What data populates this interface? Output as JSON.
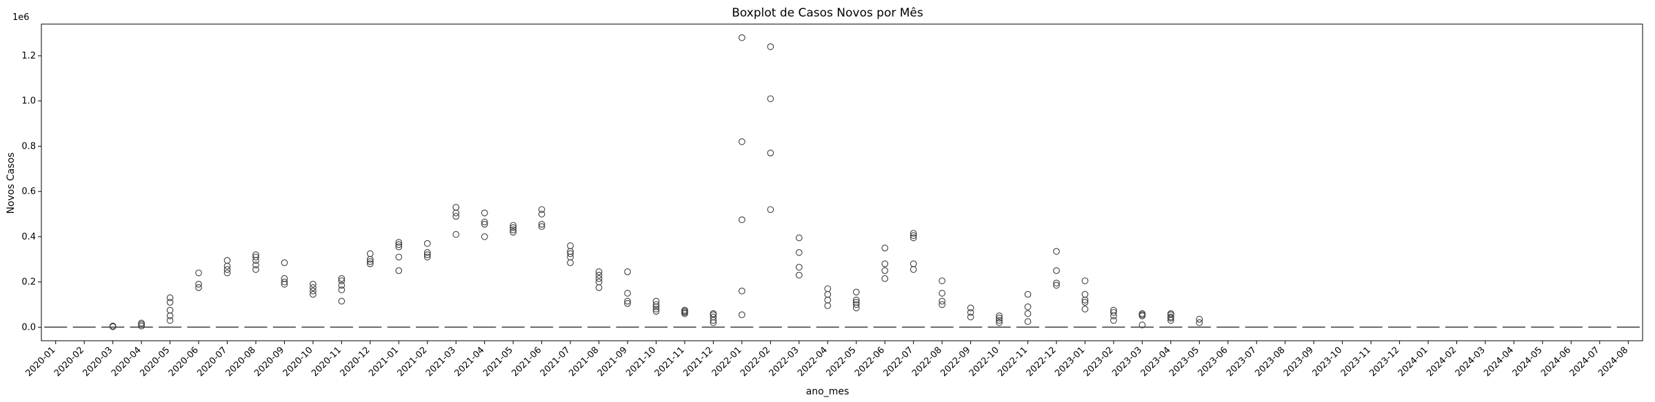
{
  "chart_data": {
    "type": "box",
    "title": "Boxplot de Casos Novos por Mês",
    "xlabel": "ano_mes",
    "ylabel": "Novos Casos",
    "y_scale_label": "1e6",
    "ylim": [
      -60000,
      1340000
    ],
    "y_ticks": [
      0,
      200000,
      400000,
      600000,
      800000,
      1000000,
      1200000
    ],
    "y_tick_labels": [
      "0.0",
      "0.2",
      "0.4",
      "0.6",
      "0.8",
      "1.0",
      "1.2"
    ],
    "grid": false,
    "box_values": "median, quartiles and whiskers all near 0 for every month",
    "categories": [
      "2020-01",
      "2020-02",
      "2020-03",
      "2020-04",
      "2020-05",
      "2020-06",
      "2020-07",
      "2020-08",
      "2020-09",
      "2020-10",
      "2020-11",
      "2020-12",
      "2021-01",
      "2021-02",
      "2021-03",
      "2021-04",
      "2021-05",
      "2021-06",
      "2021-07",
      "2021-08",
      "2021-09",
      "2021-10",
      "2021-11",
      "2021-12",
      "2022-01",
      "2022-02",
      "2022-03",
      "2022-04",
      "2022-05",
      "2022-06",
      "2022-07",
      "2022-08",
      "2022-09",
      "2022-10",
      "2022-11",
      "2022-12",
      "2023-01",
      "2023-02",
      "2023-03",
      "2023-04",
      "2023-05",
      "2023-06",
      "2023-07",
      "2023-08",
      "2023-09",
      "2023-10",
      "2023-11",
      "2023-12",
      "2024-01",
      "2024-02",
      "2024-03",
      "2024-04",
      "2024-05",
      "2024-06",
      "2024-07",
      "2024-08"
    ],
    "outliers": [
      [],
      [],
      [
        2000,
        5000
      ],
      [
        5000,
        12000,
        18000
      ],
      [
        30000,
        50000,
        75000,
        110000,
        130000
      ],
      [
        175000,
        190000,
        240000
      ],
      [
        240000,
        255000,
        270000,
        295000
      ],
      [
        255000,
        275000,
        295000,
        310000,
        320000
      ],
      [
        190000,
        200000,
        215000,
        285000
      ],
      [
        145000,
        160000,
        175000,
        190000
      ],
      [
        115000,
        165000,
        185000,
        205000,
        215000
      ],
      [
        280000,
        290000,
        300000,
        325000
      ],
      [
        250000,
        310000,
        355000,
        365000,
        375000
      ],
      [
        310000,
        320000,
        330000,
        370000
      ],
      [
        410000,
        490000,
        505000,
        530000
      ],
      [
        400000,
        455000,
        465000,
        505000
      ],
      [
        420000,
        430000,
        440000,
        450000
      ],
      [
        445000,
        455000,
        500000,
        520000
      ],
      [
        285000,
        310000,
        325000,
        335000,
        360000
      ],
      [
        175000,
        200000,
        215000,
        230000,
        245000
      ],
      [
        105000,
        115000,
        150000,
        245000
      ],
      [
        70000,
        80000,
        90000,
        100000,
        115000
      ],
      [
        60000,
        65000,
        70000,
        75000
      ],
      [
        20000,
        30000,
        45000,
        55000,
        60000
      ],
      [
        55000,
        160000,
        475000,
        820000,
        1280000
      ],
      [
        520000,
        770000,
        1010000,
        1240000
      ],
      [
        230000,
        265000,
        330000,
        395000
      ],
      [
        95000,
        120000,
        145000,
        170000
      ],
      [
        85000,
        100000,
        110000,
        120000,
        155000
      ],
      [
        215000,
        250000,
        280000,
        350000
      ],
      [
        255000,
        280000,
        395000,
        405000,
        415000
      ],
      [
        100000,
        115000,
        150000,
        205000
      ],
      [
        45000,
        65000,
        85000
      ],
      [
        20000,
        30000,
        40000,
        50000
      ],
      [
        25000,
        60000,
        90000,
        145000
      ],
      [
        185000,
        195000,
        250000,
        335000
      ],
      [
        80000,
        110000,
        120000,
        145000,
        205000
      ],
      [
        30000,
        50000,
        65000,
        75000
      ],
      [
        10000,
        50000,
        55000,
        60000
      ],
      [
        30000,
        40000,
        45000,
        55000,
        60000
      ],
      [
        20000,
        35000
      ],
      [],
      [],
      [],
      [],
      [],
      [],
      [],
      [],
      [],
      [],
      [],
      [],
      [],
      [],
      []
    ]
  }
}
